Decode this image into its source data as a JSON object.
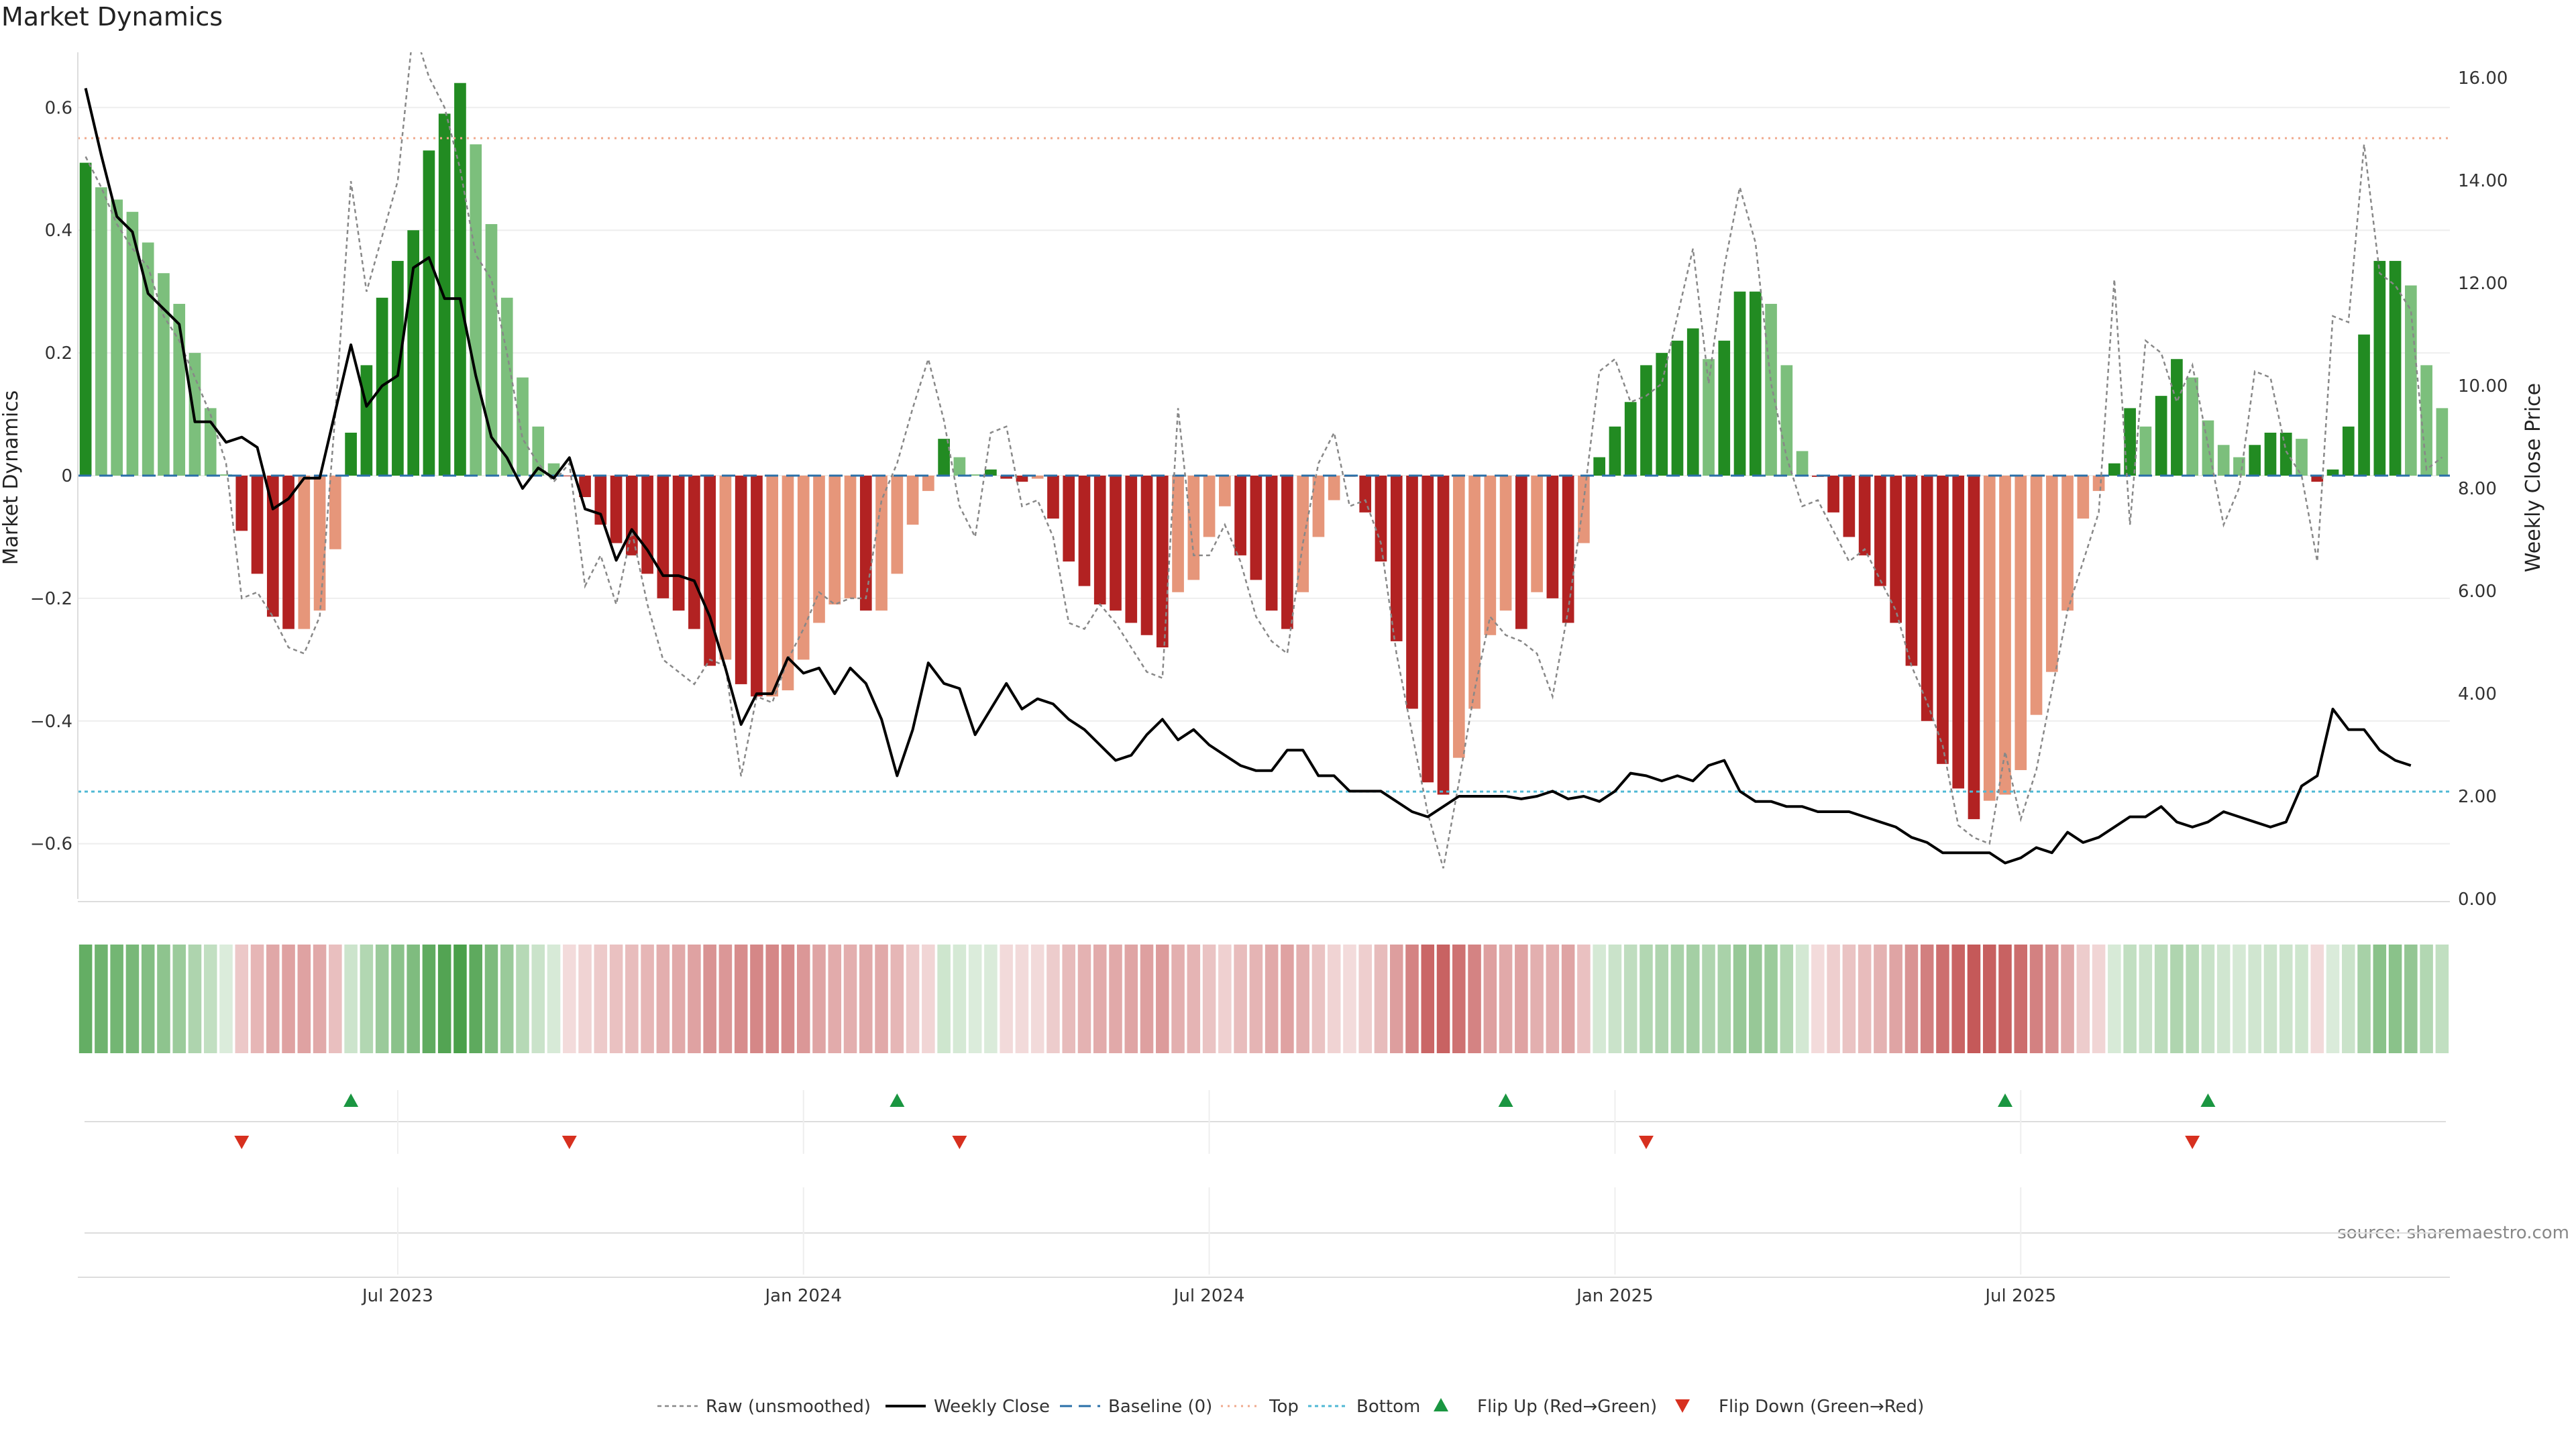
{
  "chart_data": {
    "type": "bar",
    "title": "Market Dynamics",
    "ylabel": "Market Dynamics",
    "y2label": "Weekly Close Price",
    "ylim": [
      -0.69,
      0.69
    ],
    "y2lim": [
      0,
      16.5
    ],
    "yticks": [
      -0.6,
      -0.4,
      -0.2,
      0,
      0.2,
      0.4,
      0.6
    ],
    "ytick_labels": [
      "−0.6",
      "−0.4",
      "−0.2",
      "0",
      "0.2",
      "0.4",
      "0.6"
    ],
    "y2ticks": [
      0,
      2,
      4,
      6,
      8,
      10,
      12,
      14,
      16
    ],
    "y2tick_labels": [
      "0.00",
      "2.00",
      "4.00",
      "6.00",
      "8.00",
      "10.00",
      "12.00",
      "14.00",
      "16.00"
    ],
    "x_tick_labels": [
      {
        "week": 20,
        "label": "Jul 2023"
      },
      {
        "week": 46,
        "label": "Jan 2024"
      },
      {
        "week": 72,
        "label": "Jul 2024"
      },
      {
        "week": 98,
        "label": "Jan 2025"
      },
      {
        "week": 124,
        "label": "Jul 2025"
      }
    ],
    "top_level": 0.55,
    "bottom_level": -0.515,
    "baseline": 0,
    "colors": {
      "strong_up": "#228b22",
      "weak_up": "#7cbf7c",
      "strong_down": "#b22222",
      "weak_down": "#e6967a",
      "close": "#000000",
      "raw": "#888888",
      "baseline": "#2a6fa8",
      "top": "#f0a98c",
      "bottom": "#4fb8d4",
      "flip_up": "#1a9641",
      "flip_down": "#d7301f"
    },
    "dynamics": [
      0.51,
      0.47,
      0.45,
      0.43,
      0.38,
      0.33,
      0.28,
      0.2,
      0.11,
      0.002,
      -0.09,
      -0.16,
      -0.23,
      -0.25,
      -0.25,
      -0.22,
      -0.12,
      0.07,
      0.18,
      0.29,
      0.35,
      0.4,
      0.53,
      0.59,
      0.64,
      0.54,
      0.41,
      0.29,
      0.16,
      0.08,
      0.02,
      -0.001,
      -0.035,
      -0.08,
      -0.11,
      -0.13,
      -0.16,
      -0.2,
      -0.22,
      -0.25,
      -0.31,
      -0.3,
      -0.34,
      -0.36,
      -0.36,
      -0.35,
      -0.3,
      -0.24,
      -0.21,
      -0.2,
      -0.22,
      -0.22,
      -0.16,
      -0.08,
      -0.025,
      0.06,
      0.03,
      0.002,
      0.01,
      -0.005,
      -0.01,
      -0.005,
      -0.07,
      -0.14,
      -0.18,
      -0.21,
      -0.22,
      -0.24,
      -0.26,
      -0.28,
      -0.19,
      -0.17,
      -0.1,
      -0.05,
      -0.13,
      -0.17,
      -0.22,
      -0.25,
      -0.19,
      -0.1,
      -0.04,
      -0.002,
      -0.06,
      -0.14,
      -0.27,
      -0.38,
      -0.5,
      -0.52,
      -0.46,
      -0.38,
      -0.26,
      -0.22,
      -0.25,
      -0.19,
      -0.2,
      -0.24,
      -0.11,
      0.03,
      0.08,
      0.12,
      0.18,
      0.2,
      0.22,
      0.24,
      0.19,
      0.22,
      0.3,
      0.3,
      0.28,
      0.18,
      0.04,
      -0.002,
      -0.06,
      -0.1,
      -0.13,
      -0.18,
      -0.24,
      -0.31,
      -0.4,
      -0.47,
      -0.51,
      -0.56,
      -0.53,
      -0.52,
      -0.48,
      -0.39,
      -0.32,
      -0.22,
      -0.07,
      -0.025,
      0.02,
      0.11,
      0.08,
      0.13,
      0.19,
      0.16,
      0.09,
      0.05,
      0.03,
      0.05,
      0.07,
      0.07,
      0.06,
      -0.01,
      0.01,
      0.08,
      0.23,
      0.35,
      0.35,
      0.31,
      0.18,
      0.11
    ],
    "weekly_close": [
      15.8,
      14.5,
      13.3,
      13.0,
      11.8,
      11.5,
      11.2,
      9.3,
      9.3,
      8.9,
      9.0,
      8.8,
      7.6,
      7.8,
      8.2,
      8.2,
      9.5,
      10.8,
      9.6,
      10.0,
      10.2,
      12.3,
      12.5,
      11.7,
      11.7,
      10.2,
      9.0,
      8.6,
      8.0,
      8.4,
      8.2,
      8.6,
      7.6,
      7.5,
      6.6,
      7.2,
      6.8,
      6.3,
      6.3,
      6.2,
      5.5,
      4.5,
      3.4,
      4.0,
      4.0,
      4.7,
      4.4,
      4.5,
      4.0,
      4.5,
      4.2,
      3.5,
      2.4,
      3.3,
      4.6,
      4.2,
      4.1,
      3.2,
      3.7,
      4.2,
      3.7,
      3.9,
      3.8,
      3.5,
      3.3,
      3.0,
      2.7,
      2.8,
      3.2,
      3.5,
      3.1,
      3.3,
      3.0,
      2.8,
      2.6,
      2.5,
      2.5,
      2.9,
      2.9,
      2.4,
      2.4,
      2.1,
      2.1,
      2.1,
      1.9,
      1.7,
      1.6,
      1.8,
      2.0,
      2.0,
      2.0,
      2.0,
      1.95,
      2.0,
      2.1,
      1.95,
      2.0,
      1.9,
      2.1,
      2.45,
      2.4,
      2.3,
      2.4,
      2.3,
      2.6,
      2.7,
      2.1,
      1.9,
      1.9,
      1.8,
      1.8,
      1.7,
      1.7,
      1.7,
      1.6,
      1.5,
      1.4,
      1.2,
      1.1,
      0.9,
      0.9,
      0.9,
      0.9,
      0.7,
      0.8,
      1.0,
      0.9,
      1.3,
      1.1,
      1.2,
      1.4,
      1.6,
      1.6,
      1.8,
      1.5,
      1.4,
      1.5,
      1.7,
      1.6,
      1.5,
      1.4,
      1.5,
      2.2,
      2.4,
      3.7,
      3.3,
      3.3,
      2.9,
      2.7,
      2.6
    ],
    "raw": [
      0.52,
      0.47,
      0.41,
      0.37,
      0.34,
      0.26,
      0.22,
      0.16,
      0.1,
      0.02,
      -0.2,
      -0.19,
      -0.23,
      -0.28,
      -0.29,
      -0.23,
      0.1,
      0.48,
      0.3,
      0.39,
      0.48,
      0.73,
      0.65,
      0.6,
      0.5,
      0.36,
      0.32,
      0.2,
      0.06,
      0.02,
      -0.01,
      0.02,
      -0.18,
      -0.13,
      -0.21,
      -0.09,
      -0.21,
      -0.3,
      -0.32,
      -0.34,
      -0.3,
      -0.31,
      -0.49,
      -0.36,
      -0.37,
      -0.3,
      -0.25,
      -0.19,
      -0.21,
      -0.2,
      -0.2,
      -0.04,
      0.02,
      0.11,
      0.19,
      0.09,
      -0.05,
      -0.1,
      0.07,
      0.08,
      -0.05,
      -0.04,
      -0.1,
      -0.24,
      -0.25,
      -0.21,
      -0.24,
      -0.28,
      -0.32,
      -0.33,
      0.11,
      -0.13,
      -0.13,
      -0.08,
      -0.14,
      -0.23,
      -0.27,
      -0.29,
      -0.11,
      0.02,
      0.07,
      -0.05,
      -0.04,
      -0.11,
      -0.29,
      -0.42,
      -0.55,
      -0.64,
      -0.5,
      -0.35,
      -0.23,
      -0.26,
      -0.27,
      -0.29,
      -0.36,
      -0.22,
      -0.04,
      0.17,
      0.19,
      0.12,
      0.13,
      0.15,
      0.26,
      0.37,
      0.15,
      0.34,
      0.47,
      0.38,
      0.15,
      0.03,
      -0.05,
      -0.04,
      -0.09,
      -0.14,
      -0.12,
      -0.17,
      -0.22,
      -0.31,
      -0.37,
      -0.44,
      -0.57,
      -0.59,
      -0.6,
      -0.45,
      -0.56,
      -0.48,
      -0.35,
      -0.22,
      -0.14,
      -0.06,
      0.32,
      -0.08,
      0.22,
      0.2,
      0.12,
      0.18,
      0.05,
      -0.08,
      -0.02,
      0.17,
      0.16,
      0.04,
      0.0,
      -0.14,
      0.26,
      0.25,
      0.54,
      0.33,
      0.31,
      0.27,
      0.01,
      0.03
    ],
    "heat_band": [
      0.51,
      0.47,
      0.45,
      0.43,
      0.38,
      0.33,
      0.28,
      0.2,
      0.11,
      0.002,
      -0.09,
      -0.16,
      -0.23,
      -0.25,
      -0.25,
      -0.22,
      -0.12,
      0.07,
      0.18,
      0.29,
      0.35,
      0.4,
      0.53,
      0.59,
      0.64,
      0.54,
      0.41,
      0.29,
      0.16,
      0.08,
      0.02,
      -0.001,
      -0.035,
      -0.08,
      -0.11,
      -0.13,
      -0.16,
      -0.2,
      -0.22,
      -0.25,
      -0.31,
      -0.3,
      -0.34,
      -0.36,
      -0.36,
      -0.35,
      -0.3,
      -0.24,
      -0.21,
      -0.2,
      -0.22,
      -0.22,
      -0.16,
      -0.08,
      -0.025,
      0.06,
      0.03,
      0.002,
      0.01,
      -0.005,
      -0.01,
      -0.005,
      -0.07,
      -0.14,
      -0.18,
      -0.21,
      -0.22,
      -0.24,
      -0.26,
      -0.28,
      -0.19,
      -0.17,
      -0.1,
      -0.05,
      -0.13,
      -0.17,
      -0.22,
      -0.25,
      -0.19,
      -0.1,
      -0.04,
      -0.002,
      -0.06,
      -0.14,
      -0.27,
      -0.38,
      -0.5,
      -0.52,
      -0.46,
      -0.38,
      -0.26,
      -0.22,
      -0.25,
      -0.19,
      -0.2,
      -0.24,
      -0.11,
      0.03,
      0.08,
      0.12,
      0.18,
      0.2,
      0.22,
      0.24,
      0.19,
      0.22,
      0.3,
      0.3,
      0.28,
      0.18,
      0.04,
      -0.002,
      -0.06,
      -0.1,
      -0.13,
      -0.18,
      -0.24,
      -0.31,
      -0.4,
      -0.47,
      -0.51,
      -0.56,
      -0.53,
      -0.52,
      -0.48,
      -0.39,
      -0.32,
      -0.22,
      -0.07,
      -0.025,
      0.02,
      0.11,
      0.08,
      0.13,
      0.19,
      0.16,
      0.09,
      0.05,
      0.03,
      0.05,
      0.07,
      0.07,
      0.06,
      -0.01,
      0.01,
      0.08,
      0.23,
      0.35,
      0.35,
      0.31,
      0.18,
      0.11
    ],
    "flip_up_weeks": [
      17,
      52,
      91,
      123,
      136
    ],
    "flip_down_weeks": [
      10,
      31,
      56,
      100,
      135
    ],
    "legend": [
      {
        "label": "Raw (unsmoothed)",
        "marker": "raw"
      },
      {
        "label": "Weekly Close",
        "marker": "close"
      },
      {
        "label": "Baseline (0)",
        "marker": "baseline"
      },
      {
        "label": "Top",
        "marker": "top"
      },
      {
        "label": "Bottom",
        "marker": "bottom"
      },
      {
        "label": "Flip Up (Red→Green)",
        "marker": "flip_up"
      },
      {
        "label": "Flip Down (Green→Red)",
        "marker": "flip_down"
      }
    ],
    "source": "source: sharemaestro.com"
  }
}
